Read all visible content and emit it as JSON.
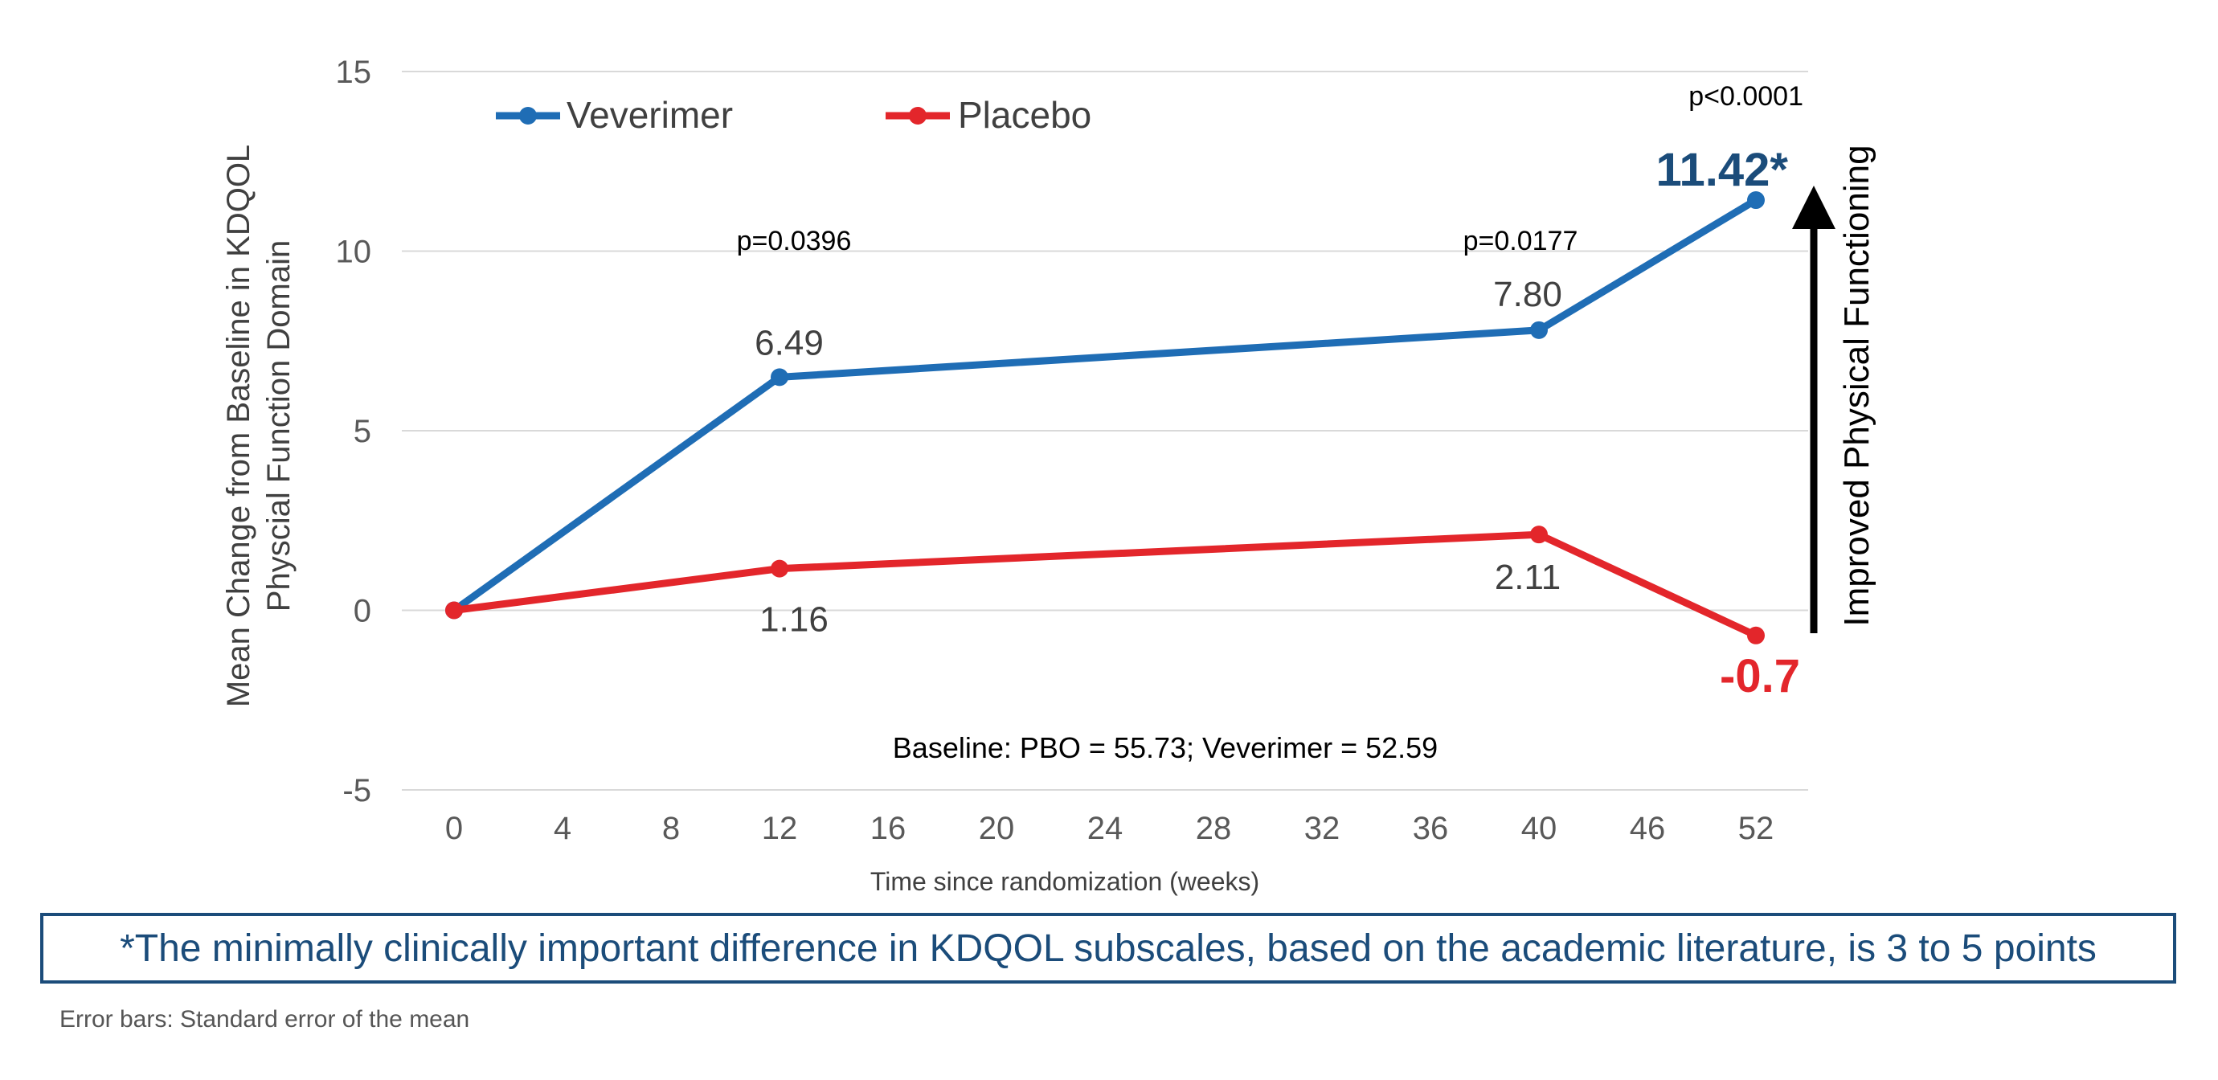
{
  "colors": {
    "veverimer": "#1f6db5",
    "placebo": "#e3262b",
    "dark_blue": "#1b4c7a",
    "grid": "#d9d9d9",
    "tick_text": "#595959",
    "axis_text": "#404040"
  },
  "chart_data": {
    "type": "line",
    "title": "",
    "xlabel": "Time since randomization (weeks)",
    "ylabel_line1": "Mean Change from Baseline in KDQOL",
    "ylabel_line2": "Physcial Function Domain",
    "x_tick_labels": [
      "0",
      "4",
      "8",
      "12",
      "16",
      "20",
      "24",
      "28",
      "32",
      "36",
      "40",
      "46",
      "52"
    ],
    "y_ticks": [
      15,
      10,
      5,
      0,
      -5
    ],
    "y_tick_labels": [
      "15",
      "10",
      "5",
      "0",
      "-5"
    ],
    "ylim": [
      -5,
      15
    ],
    "grid": true,
    "legend_position": "top-left",
    "series": [
      {
        "name": "Veverimer",
        "color": "#1f6db5",
        "points": [
          {
            "x_tick": "0",
            "y": 0
          },
          {
            "x_tick": "12",
            "y": 6.49
          },
          {
            "x_tick": "40",
            "y": 7.8
          },
          {
            "x_tick": "52",
            "y": 11.42
          }
        ],
        "labels": [
          "6.49",
          "7.80",
          "11.42*"
        ]
      },
      {
        "name": "Placebo",
        "color": "#e3262b",
        "points": [
          {
            "x_tick": "0",
            "y": 0
          },
          {
            "x_tick": "12",
            "y": 1.16
          },
          {
            "x_tick": "40",
            "y": 2.11
          },
          {
            "x_tick": "52",
            "y": -0.7
          }
        ],
        "labels": [
          "1.16",
          "2.11",
          "-0.7"
        ]
      }
    ],
    "annotations": {
      "p_week12": "p=0.0396",
      "p_week40": "p=0.0177",
      "p_week52": "p<0.0001",
      "baseline": "Baseline:  PBO = 55.73; Veverimer = 52.59",
      "arrow_label": "Improved Physical Functioning"
    }
  },
  "note": "*The minimally clinically important difference in KDQOL subscales, based on the academic literature, is 3 to 5 points",
  "footnote": "Error bars: Standard error of the mean"
}
